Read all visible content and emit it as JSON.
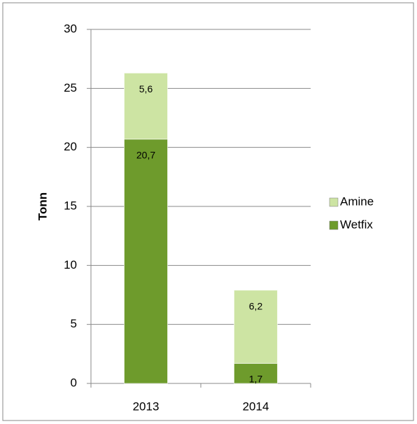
{
  "chart_data": {
    "type": "stacked_bar",
    "y_label": "Tonn",
    "categories": [
      "2013",
      "2014"
    ],
    "series": [
      {
        "name": "Wetfix",
        "color": "#6e9b2c",
        "values": [
          20.7,
          1.7
        ],
        "value_labels": [
          "20,7",
          "1,7"
        ]
      },
      {
        "name": "Amine",
        "color": "#cde4a3",
        "values": [
          5.6,
          6.2
        ],
        "value_labels": [
          "5,6",
          "6,2"
        ]
      }
    ],
    "ylim": [
      0,
      30
    ],
    "yticks": [
      0,
      5,
      10,
      15,
      20,
      25,
      30
    ],
    "grid": true,
    "legend": "right"
  }
}
